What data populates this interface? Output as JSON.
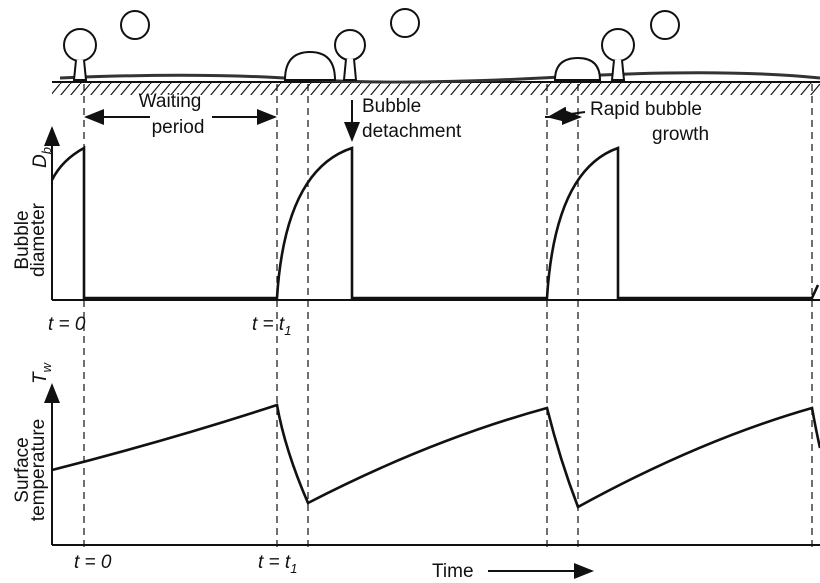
{
  "labels": {
    "waiting_period": [
      "Waiting",
      "period"
    ],
    "bubble_detachment": [
      "Bubble",
      "detachment"
    ],
    "rapid_bubble_growth": [
      "Rapid bubble",
      "growth"
    ],
    "time": "Time"
  },
  "upper_panel": {
    "axis_label": [
      "Bubble",
      "diameter"
    ],
    "symbol": {
      "main": "D",
      "sub": "b"
    },
    "ticks": [
      {
        "text": "t = 0"
      },
      {
        "text": "t = t",
        "sub": "1"
      }
    ]
  },
  "lower_panel": {
    "axis_label": [
      "Surface",
      "temperature"
    ],
    "symbol": {
      "main": "T",
      "sub": "w"
    },
    "ticks": [
      {
        "text": "t = 0"
      },
      {
        "text": "t = t",
        "sub": "1"
      }
    ]
  }
}
